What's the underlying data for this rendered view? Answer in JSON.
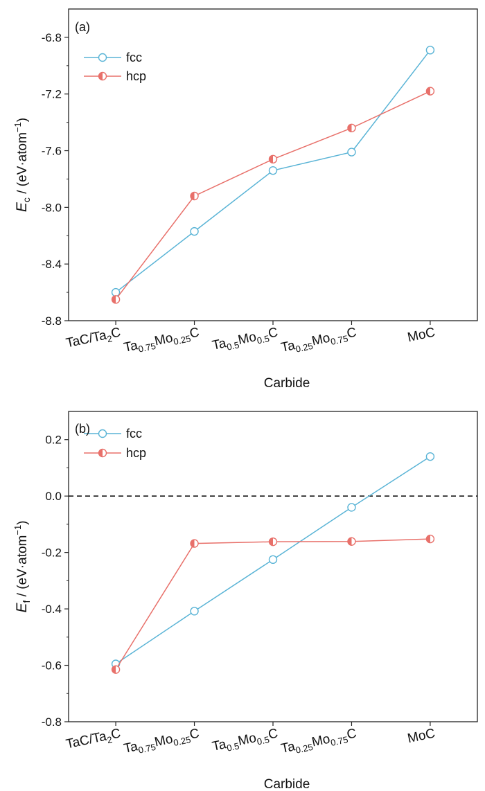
{
  "chart_data": [
    {
      "type": "line",
      "panel": "(a)",
      "categories": [
        "TaC/Ta2C",
        "Ta0.75Mo0.25C",
        "Ta0.5Mo0.5C",
        "Ta0.25Mo0.75C",
        "MoC"
      ],
      "xlabel": "Carbide",
      "ylabel": "Ec / (eV·atom−1)",
      "ylim": [
        -8.8,
        -6.6
      ],
      "yticks": [
        -8.8,
        -8.4,
        -8.0,
        -7.6,
        -7.2,
        -6.8
      ],
      "reference_line": null,
      "legend": "top-left",
      "grid": false,
      "series": [
        {
          "name": "fcc",
          "values": [
            -8.6,
            -8.17,
            -7.74,
            -7.61,
            -6.89
          ],
          "color": "#5ab4d6",
          "marker": "open-circle"
        },
        {
          "name": "hcp",
          "values": [
            -8.65,
            -7.92,
            -7.66,
            -7.44,
            -7.18
          ],
          "color": "#e8706a",
          "marker": "half-filled-circle"
        }
      ]
    },
    {
      "type": "line",
      "panel": "(b)",
      "categories": [
        "TaC/Ta2C",
        "Ta0.75Mo0.25C",
        "Ta0.5Mo0.5C",
        "Ta0.25Mo0.75C",
        "MoC"
      ],
      "xlabel": "Carbide",
      "ylabel": "Ef / (eV·atom−1)",
      "ylim": [
        -0.8,
        0.3
      ],
      "yticks": [
        -0.8,
        -0.6,
        -0.4,
        -0.2,
        0.0,
        0.2
      ],
      "reference_line": 0.0,
      "legend": "top-left",
      "grid": false,
      "series": [
        {
          "name": "fcc",
          "values": [
            -0.595,
            -0.408,
            -0.225,
            -0.04,
            0.14
          ],
          "color": "#5ab4d6",
          "marker": "open-circle"
        },
        {
          "name": "hcp",
          "values": [
            -0.615,
            -0.168,
            -0.162,
            -0.161,
            -0.152
          ],
          "color": "#e8706a",
          "marker": "half-filled-circle"
        }
      ]
    }
  ]
}
